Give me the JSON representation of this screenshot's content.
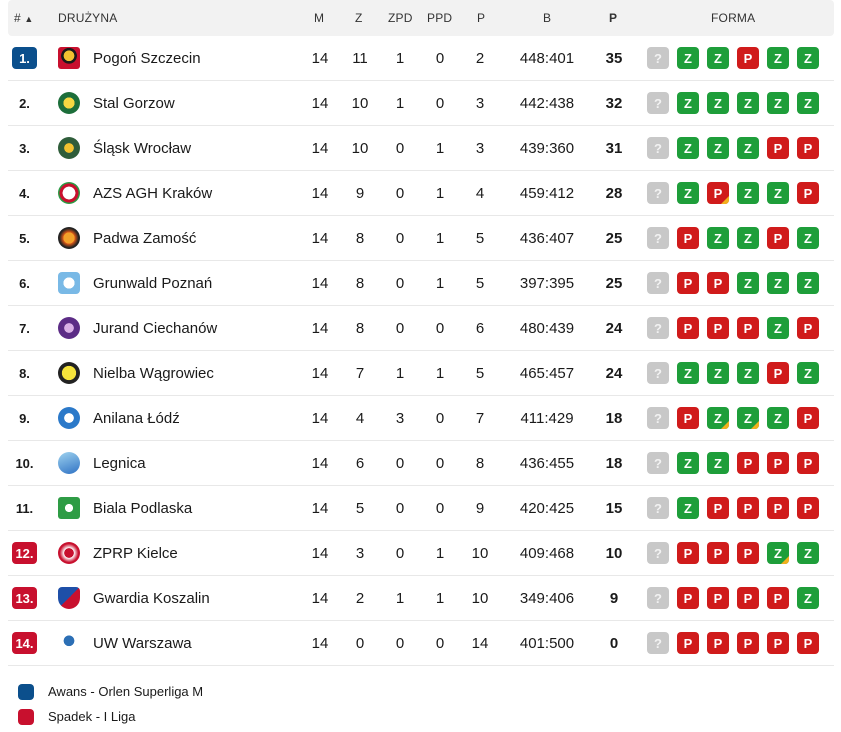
{
  "header": {
    "rank": "#",
    "sort_icon": "▲",
    "team": "DRUŻYNA",
    "m": "M",
    "z": "Z",
    "zpd": "ZPD",
    "ppd": "PPD",
    "p": "P",
    "b": "B",
    "pts": "P",
    "form": "FORMA"
  },
  "colors": {
    "promotion": "#0b4f8c",
    "relegation": "#c8102e",
    "win": "#1e9e3a",
    "loss": "#d01b1b",
    "unknown": "#c8c8c8",
    "overtime_marker": "#f2b01e"
  },
  "rows": [
    {
      "rank": "1.",
      "zone": "promo",
      "team": "Pogoń Szczecin",
      "m": "14",
      "z": "11",
      "zpd": "1",
      "ppd": "0",
      "p": "2",
      "b": "448:401",
      "pts": "35",
      "form": [
        "?",
        "Z",
        "Z",
        "P",
        "Z",
        "Z"
      ],
      "ot": []
    },
    {
      "rank": "2.",
      "zone": "none",
      "team": "Stal Gorzow",
      "m": "14",
      "z": "10",
      "zpd": "1",
      "ppd": "0",
      "p": "3",
      "b": "442:438",
      "pts": "32",
      "form": [
        "?",
        "Z",
        "Z",
        "Z",
        "Z",
        "Z"
      ],
      "ot": []
    },
    {
      "rank": "3.",
      "zone": "none",
      "team": "Śląsk Wrocław",
      "m": "14",
      "z": "10",
      "zpd": "0",
      "ppd": "1",
      "p": "3",
      "b": "439:360",
      "pts": "31",
      "form": [
        "?",
        "Z",
        "Z",
        "Z",
        "P",
        "P"
      ],
      "ot": []
    },
    {
      "rank": "4.",
      "zone": "none",
      "team": "AZS AGH Kraków",
      "m": "14",
      "z": "9",
      "zpd": "0",
      "ppd": "1",
      "p": "4",
      "b": "459:412",
      "pts": "28",
      "form": [
        "?",
        "Z",
        "P",
        "Z",
        "Z",
        "P"
      ],
      "ot": [
        2
      ]
    },
    {
      "rank": "5.",
      "zone": "none",
      "team": "Padwa Zamość",
      "m": "14",
      "z": "8",
      "zpd": "0",
      "ppd": "1",
      "p": "5",
      "b": "436:407",
      "pts": "25",
      "form": [
        "?",
        "P",
        "Z",
        "Z",
        "P",
        "Z"
      ],
      "ot": []
    },
    {
      "rank": "6.",
      "zone": "none",
      "team": "Grunwald Poznań",
      "m": "14",
      "z": "8",
      "zpd": "0",
      "ppd": "1",
      "p": "5",
      "b": "397:395",
      "pts": "25",
      "form": [
        "?",
        "P",
        "P",
        "Z",
        "Z",
        "Z"
      ],
      "ot": []
    },
    {
      "rank": "7.",
      "zone": "none",
      "team": "Jurand Ciechanów",
      "m": "14",
      "z": "8",
      "zpd": "0",
      "ppd": "0",
      "p": "6",
      "b": "480:439",
      "pts": "24",
      "form": [
        "?",
        "P",
        "P",
        "P",
        "Z",
        "P"
      ],
      "ot": []
    },
    {
      "rank": "8.",
      "zone": "none",
      "team": "Nielba Wągrowiec",
      "m": "14",
      "z": "7",
      "zpd": "1",
      "ppd": "1",
      "p": "5",
      "b": "465:457",
      "pts": "24",
      "form": [
        "?",
        "Z",
        "Z",
        "Z",
        "P",
        "Z"
      ],
      "ot": []
    },
    {
      "rank": "9.",
      "zone": "none",
      "team": "Anilana Łódź",
      "m": "14",
      "z": "4",
      "zpd": "3",
      "ppd": "0",
      "p": "7",
      "b": "411:429",
      "pts": "18",
      "form": [
        "?",
        "P",
        "Z",
        "Z",
        "Z",
        "P"
      ],
      "ot": [
        2,
        3
      ]
    },
    {
      "rank": "10.",
      "zone": "none",
      "team": "Legnica",
      "m": "14",
      "z": "6",
      "zpd": "0",
      "ppd": "0",
      "p": "8",
      "b": "436:455",
      "pts": "18",
      "form": [
        "?",
        "Z",
        "Z",
        "P",
        "P",
        "P"
      ],
      "ot": []
    },
    {
      "rank": "11.",
      "zone": "none",
      "team": "Biala Podlaska",
      "m": "14",
      "z": "5",
      "zpd": "0",
      "ppd": "0",
      "p": "9",
      "b": "420:425",
      "pts": "15",
      "form": [
        "?",
        "Z",
        "P",
        "P",
        "P",
        "P"
      ],
      "ot": []
    },
    {
      "rank": "12.",
      "zone": "releg",
      "team": "ZPRP Kielce",
      "m": "14",
      "z": "3",
      "zpd": "0",
      "ppd": "1",
      "p": "10",
      "b": "409:468",
      "pts": "10",
      "form": [
        "?",
        "P",
        "P",
        "P",
        "Z",
        "Z"
      ],
      "ot": [
        4
      ]
    },
    {
      "rank": "13.",
      "zone": "releg",
      "team": "Gwardia Koszalin",
      "m": "14",
      "z": "2",
      "zpd": "1",
      "ppd": "1",
      "p": "10",
      "b": "349:406",
      "pts": "9",
      "form": [
        "?",
        "P",
        "P",
        "P",
        "P",
        "Z"
      ],
      "ot": []
    },
    {
      "rank": "14.",
      "zone": "releg",
      "team": "UW Warszawa",
      "m": "14",
      "z": "0",
      "zpd": "0",
      "ppd": "0",
      "p": "14",
      "b": "401:500",
      "pts": "0",
      "form": [
        "?",
        "P",
        "P",
        "P",
        "P",
        "P"
      ],
      "ot": []
    }
  ],
  "legend": {
    "promotion": "Awans - Orlen Superliga M",
    "relegation": "Spadek - I Liga"
  }
}
